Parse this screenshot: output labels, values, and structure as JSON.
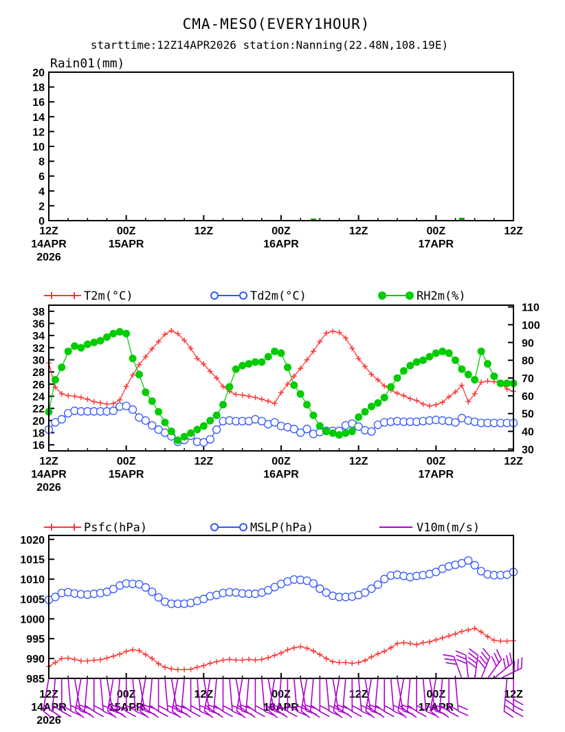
{
  "title": "CMA-MESO(EVERY1HOUR)",
  "subtitle": "starttime:12Z14APR2026   station:Nanning(22.48N,108.19E)",
  "colors": {
    "t2m": "#ff3333",
    "td2m": "#3355ff",
    "rh2m": "#00cc00",
    "psfc": "#ff3333",
    "mslp": "#3355ff",
    "wind": "#aa00cc",
    "rain": "#00aa00"
  },
  "x_ticks": [
    {
      "h": 0,
      "line1": "12Z",
      "line2": "14APR",
      "line3": "2026"
    },
    {
      "h": 12,
      "line1": "00Z",
      "line2": "15APR",
      "line3": ""
    },
    {
      "h": 24,
      "line1": "12Z",
      "line2": "",
      "line3": ""
    },
    {
      "h": 36,
      "line1": "00Z",
      "line2": "16APR",
      "line3": ""
    },
    {
      "h": 48,
      "line1": "12Z",
      "line2": "",
      "line3": ""
    },
    {
      "h": 60,
      "line1": "00Z",
      "line2": "17APR",
      "line3": ""
    },
    {
      "h": 72,
      "line1": "12Z",
      "line2": "",
      "line3": ""
    }
  ],
  "chart_data": [
    {
      "type": "bar",
      "title": "Rain01(mm)",
      "ylim": [
        0,
        20
      ],
      "yticks": [
        0,
        2,
        4,
        6,
        8,
        10,
        12,
        14,
        16,
        18,
        20
      ],
      "xlim_hours": [
        0,
        72
      ],
      "x_hours": [
        41,
        64
      ],
      "values": [
        0.1,
        0.2
      ]
    },
    {
      "type": "line",
      "legend": [
        "T2m(°C)",
        "Td2m(°C)",
        "RH2m(%)"
      ],
      "ylim_left": [
        15,
        39
      ],
      "yticks_left": [
        16,
        18,
        20,
        22,
        24,
        26,
        28,
        30,
        32,
        34,
        36,
        38
      ],
      "ylim_right": [
        29,
        111
      ],
      "yticks_right": [
        30,
        40,
        50,
        60,
        70,
        80,
        90,
        100,
        110
      ],
      "x_hours": [
        0,
        1,
        2,
        3,
        4,
        5,
        6,
        7,
        8,
        9,
        10,
        11,
        12,
        13,
        14,
        15,
        16,
        17,
        18,
        19,
        20,
        21,
        22,
        23,
        24,
        25,
        26,
        27,
        28,
        29,
        30,
        31,
        32,
        33,
        34,
        35,
        36,
        37,
        38,
        39,
        40,
        41,
        42,
        43,
        44,
        45,
        46,
        47,
        48,
        49,
        50,
        51,
        52,
        53,
        54,
        55,
        56,
        57,
        58,
        59,
        60,
        61,
        62,
        63,
        64,
        65,
        66,
        67,
        68,
        69,
        70,
        71,
        72
      ],
      "series": [
        {
          "name": "T2m",
          "axis": "left",
          "values": [
            29.5,
            25.5,
            24.4,
            24.1,
            24.0,
            23.8,
            23.5,
            23.1,
            22.9,
            22.7,
            22.8,
            23.4,
            25.6,
            27.5,
            29.2,
            30.5,
            31.8,
            33.0,
            34.2,
            34.8,
            34.3,
            33.2,
            31.9,
            30.2,
            29.3,
            28.1,
            27.0,
            25.6,
            24.8,
            24.3,
            24.2,
            24.0,
            23.8,
            23.5,
            23.2,
            22.8,
            24.6,
            26.0,
            27.3,
            28.6,
            30.0,
            31.4,
            33.0,
            34.4,
            34.7,
            34.5,
            33.6,
            31.9,
            30.2,
            28.9,
            27.6,
            26.7,
            25.7,
            25.0,
            24.5,
            24.1,
            23.6,
            23.3,
            22.7,
            22.4,
            22.6,
            23.0,
            23.9,
            24.7,
            25.8,
            23.1,
            24.4,
            26.3,
            26.5,
            26.4,
            26.2,
            25.2,
            24.8
          ]
        },
        {
          "name": "Td2m",
          "axis": "left",
          "values": [
            18.5,
            19.7,
            20.2,
            21.2,
            21.6,
            21.5,
            21.5,
            21.5,
            21.5,
            21.5,
            21.6,
            22.3,
            22.4,
            21.8,
            20.5,
            20.0,
            19.2,
            18.5,
            18.0,
            17.4,
            16.5,
            16.8,
            17.5,
            16.5,
            16.4,
            16.9,
            18.5,
            19.9,
            20.0,
            19.9,
            19.9,
            19.9,
            20.2,
            19.9,
            19.4,
            19.7,
            19.1,
            18.9,
            18.6,
            18.0,
            18.6,
            17.8,
            18.1,
            18.3,
            18.3,
            18.3,
            19.2,
            19.5,
            19.0,
            18.4,
            18.2,
            19.3,
            19.7,
            19.8,
            19.9,
            19.8,
            19.8,
            19.8,
            19.9,
            20.0,
            20.1,
            20.0,
            19.9,
            19.7,
            20.4,
            20.0,
            19.8,
            19.6,
            19.6,
            19.6,
            19.6,
            19.6,
            19.6
          ]
        },
        {
          "name": "RH2m",
          "axis": "right",
          "values": [
            51,
            69,
            76,
            85,
            88,
            87,
            89,
            90,
            91,
            93,
            95,
            96,
            95,
            81,
            72,
            62,
            57,
            51,
            45,
            40,
            35,
            37,
            39,
            41,
            43,
            46,
            49,
            55,
            65,
            75,
            77,
            78,
            79,
            79,
            82,
            85,
            84,
            76,
            66,
            61,
            55,
            49,
            43,
            40,
            39,
            38,
            39,
            40,
            48,
            51,
            54,
            56,
            59,
            65,
            70,
            74,
            77,
            79,
            80,
            82,
            84,
            85,
            84,
            80,
            75,
            72,
            69,
            85,
            78,
            71,
            67,
            67,
            67
          ]
        }
      ]
    },
    {
      "type": "line",
      "legend": [
        "Psfc(hPa)",
        "MSLP(hPa)",
        "V10m(m/s)"
      ],
      "ylim": [
        985,
        1021
      ],
      "yticks": [
        985,
        990,
        995,
        1000,
        1005,
        1010,
        1015,
        1020
      ],
      "x_hours": [
        0,
        1,
        2,
        3,
        4,
        5,
        6,
        7,
        8,
        9,
        10,
        11,
        12,
        13,
        14,
        15,
        16,
        17,
        18,
        19,
        20,
        21,
        22,
        23,
        24,
        25,
        26,
        27,
        28,
        29,
        30,
        31,
        32,
        33,
        34,
        35,
        36,
        37,
        38,
        39,
        40,
        41,
        42,
        43,
        44,
        45,
        46,
        47,
        48,
        49,
        50,
        51,
        52,
        53,
        54,
        55,
        56,
        57,
        58,
        59,
        60,
        61,
        62,
        63,
        64,
        65,
        66,
        67,
        68,
        69,
        70,
        71,
        72
      ],
      "series": [
        {
          "name": "Psfc",
          "values": [
            988.0,
            989.0,
            990.0,
            990.1,
            989.8,
            989.4,
            989.4,
            989.6,
            989.7,
            990.1,
            990.6,
            991.1,
            991.8,
            992.2,
            992.0,
            991.0,
            990.0,
            988.7,
            987.8,
            987.4,
            987.2,
            987.2,
            987.3,
            987.8,
            988.2,
            988.8,
            989.2,
            989.6,
            989.8,
            989.6,
            989.6,
            989.8,
            989.6,
            989.8,
            990.2,
            990.8,
            991.4,
            992.2,
            992.7,
            993.0,
            992.6,
            991.9,
            991.0,
            990.0,
            989.2,
            989.0,
            989.0,
            988.8,
            989.0,
            989.5,
            990.4,
            991.2,
            991.8,
            992.7,
            993.8,
            994.0,
            993.8,
            993.5,
            994.0,
            994.2,
            994.7,
            995.2,
            995.7,
            996.2,
            996.8,
            997.2,
            997.6,
            996.7,
            995.5,
            994.6,
            994.4,
            994.4,
            994.5
          ]
        },
        {
          "name": "MSLP",
          "values": [
            1004.8,
            1005.5,
            1006.5,
            1006.7,
            1006.4,
            1006.2,
            1006.1,
            1006.3,
            1006.5,
            1006.8,
            1007.5,
            1008.4,
            1008.9,
            1008.8,
            1008.7,
            1007.9,
            1006.8,
            1005.4,
            1004.3,
            1003.8,
            1003.8,
            1003.8,
            1004.0,
            1004.5,
            1005.0,
            1005.7,
            1006.0,
            1006.5,
            1006.7,
            1006.6,
            1006.4,
            1006.3,
            1006.3,
            1006.6,
            1007.2,
            1008.0,
            1008.8,
            1009.4,
            1009.9,
            1009.8,
            1009.6,
            1008.9,
            1007.6,
            1006.6,
            1005.8,
            1005.5,
            1005.5,
            1005.6,
            1006.0,
            1006.6,
            1007.6,
            1008.6,
            1010.0,
            1010.9,
            1011.1,
            1010.8,
            1010.5,
            1010.8,
            1011.0,
            1011.3,
            1011.8,
            1012.6,
            1013.2,
            1013.6,
            1014.0,
            1014.7,
            1013.5,
            1012.0,
            1011.2,
            1011.0,
            1011.0,
            1011.1,
            1011.8
          ]
        },
        {
          "name": "V10m",
          "values": [
            4,
            4,
            4,
            4,
            4,
            4,
            4,
            4,
            4,
            4,
            4,
            4,
            4,
            4,
            4,
            4,
            4,
            4,
            4,
            4,
            4,
            4,
            4,
            4,
            4,
            4,
            4,
            4,
            4,
            4,
            4,
            4,
            4,
            4,
            4,
            4,
            4,
            4,
            4,
            4,
            4,
            4,
            4,
            4,
            4,
            4,
            4,
            4,
            4,
            4,
            4,
            4,
            4,
            4,
            4,
            4,
            4,
            4,
            4,
            4,
            4,
            4,
            4,
            4,
            6,
            6,
            8,
            8,
            6,
            6,
            6,
            6,
            6
          ]
        }
      ]
    }
  ]
}
